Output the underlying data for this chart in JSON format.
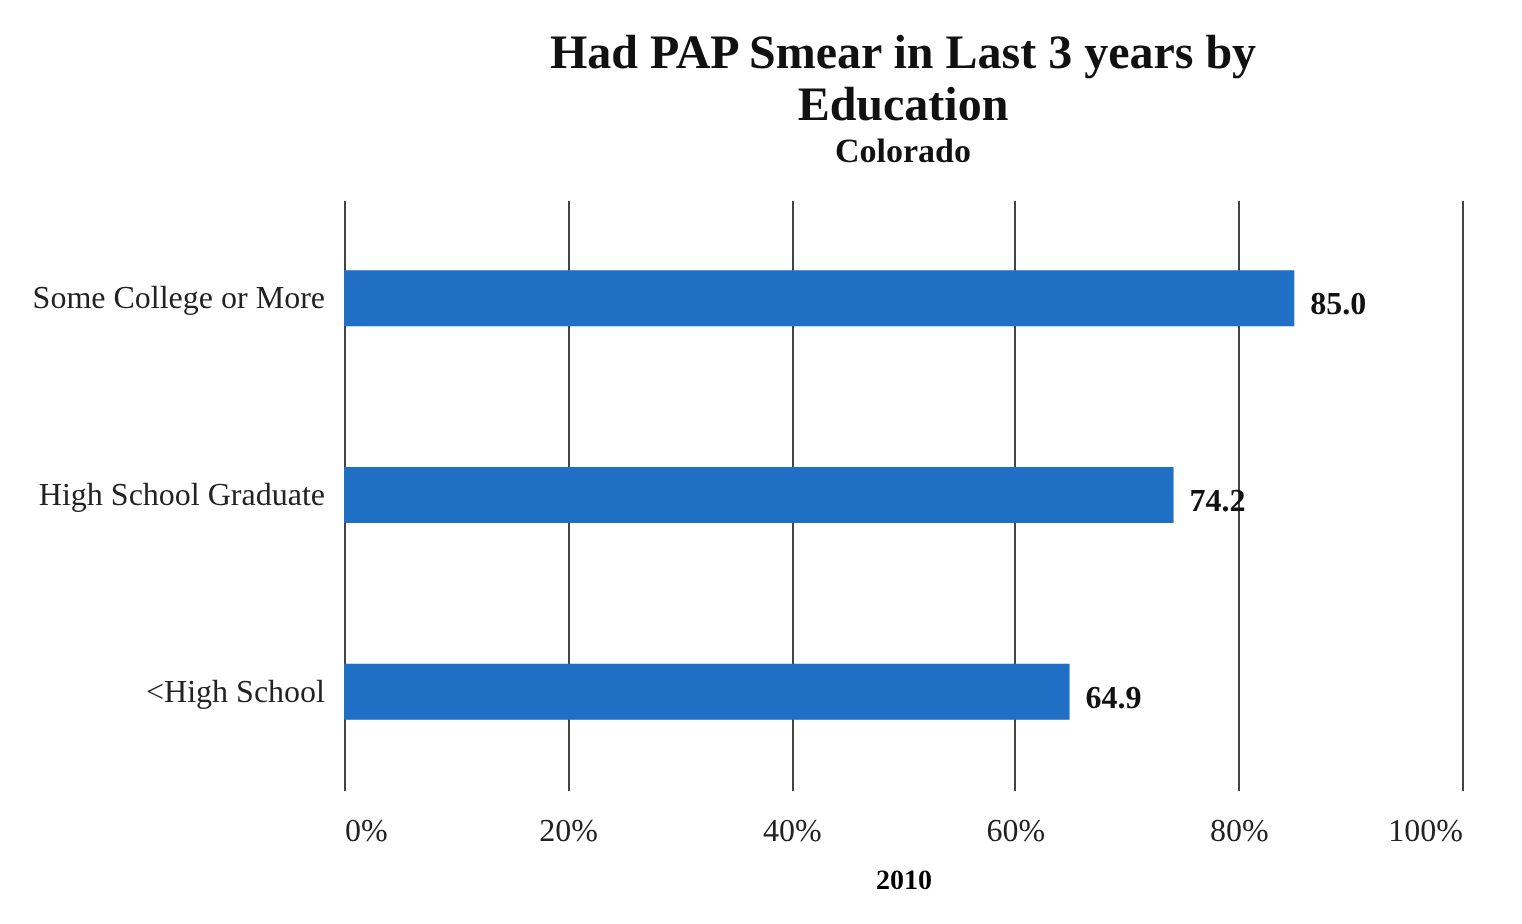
{
  "chart_data": {
    "type": "bar",
    "orientation": "horizontal",
    "title": "Had PAP Smear in Last 3 years by\nEducation",
    "subtitle": "Colorado",
    "xlabel": "2010",
    "categories": [
      "Some College or More",
      "High School Graduate",
      "<High School"
    ],
    "values": [
      85.0,
      74.2,
      64.9
    ],
    "value_labels": [
      "85.0",
      "74.2",
      "64.9"
    ],
    "color": "#1f6fc5",
    "xlim": [
      0,
      100
    ],
    "xticks": [
      {
        "value": 0,
        "label": "0%"
      },
      {
        "value": 20,
        "label": "20%"
      },
      {
        "value": 40,
        "label": "40%"
      },
      {
        "value": 60,
        "label": "60%"
      },
      {
        "value": 80,
        "label": "80%"
      },
      {
        "value": 100,
        "label": "100%"
      }
    ],
    "grid": "x"
  }
}
